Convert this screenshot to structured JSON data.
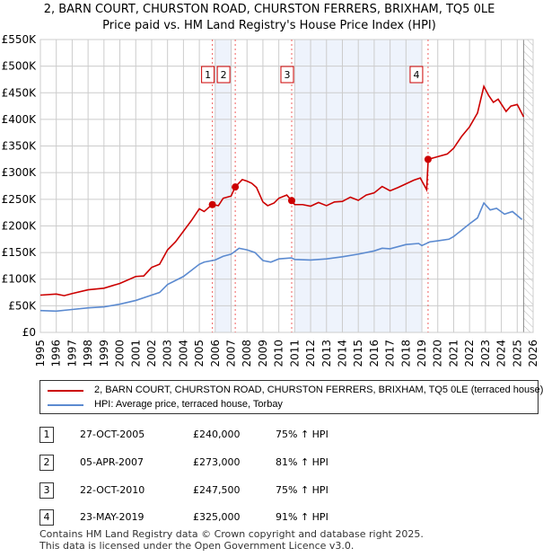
{
  "chart_data": {
    "type": "line",
    "title": "2, BARN COURT, CHURSTON ROAD, CHURSTON FERRERS, BRIXHAM, TQ5 0LE",
    "subtitle": "Price paid vs. HM Land Registry's House Price Index (HPI)",
    "ylim": [
      0,
      550000
    ],
    "xlim": [
      1995,
      2026
    ],
    "y_ticks": [
      {
        "v": 0,
        "l": "£0"
      },
      {
        "v": 50000,
        "l": "£50K"
      },
      {
        "v": 100000,
        "l": "£100K"
      },
      {
        "v": 150000,
        "l": "£150K"
      },
      {
        "v": 200000,
        "l": "£200K"
      },
      {
        "v": 250000,
        "l": "£250K"
      },
      {
        "v": 300000,
        "l": "£300K"
      },
      {
        "v": 350000,
        "l": "£350K"
      },
      {
        "v": 400000,
        "l": "£400K"
      },
      {
        "v": 450000,
        "l": "£450K"
      },
      {
        "v": 500000,
        "l": "£500K"
      },
      {
        "v": 550000,
        "l": "£550K"
      }
    ],
    "x_ticks": [
      "1995",
      "1996",
      "1997",
      "1998",
      "1999",
      "2000",
      "2001",
      "2002",
      "2003",
      "2004",
      "2005",
      "2006",
      "2007",
      "2008",
      "2009",
      "2010",
      "2011",
      "2012",
      "2013",
      "2014",
      "2015",
      "2016",
      "2017",
      "2018",
      "2019",
      "2020",
      "2021",
      "2022",
      "2023",
      "2024",
      "2025",
      "2026"
    ],
    "shaded_ranges": [
      [
        2006,
        2007
      ],
      [
        2011,
        2019
      ]
    ],
    "forecast_from": 2025.4,
    "series": [
      {
        "name": "2, BARN COURT, CHURSTON ROAD, CHURSTON FERRERS, BRIXHAM, TQ5 0LE (terraced house)",
        "color": "#cc0000",
        "points": [
          [
            1995,
            70
          ],
          [
            1996,
            72
          ],
          [
            1996.5,
            69
          ],
          [
            1997,
            73
          ],
          [
            1998,
            80
          ],
          [
            1999,
            83
          ],
          [
            2000,
            92
          ],
          [
            2001,
            105
          ],
          [
            2001.5,
            106
          ],
          [
            2002,
            122
          ],
          [
            2002.5,
            128
          ],
          [
            2003,
            155
          ],
          [
            2003.5,
            170
          ],
          [
            2004,
            190
          ],
          [
            2004.5,
            210
          ],
          [
            2005,
            232
          ],
          [
            2005.3,
            227
          ],
          [
            2005.8,
            240
          ],
          [
            2006.2,
            238
          ],
          [
            2006.5,
            252
          ],
          [
            2007,
            256
          ],
          [
            2007.25,
            273
          ],
          [
            2007.7,
            287
          ],
          [
            2008,
            284
          ],
          [
            2008.3,
            280
          ],
          [
            2008.6,
            272
          ],
          [
            2009,
            245
          ],
          [
            2009.3,
            238
          ],
          [
            2009.7,
            243
          ],
          [
            2010,
            252
          ],
          [
            2010.5,
            258
          ],
          [
            2010.8,
            247.5
          ],
          [
            2011,
            240
          ],
          [
            2011.5,
            240
          ],
          [
            2012,
            237
          ],
          [
            2012.5,
            244
          ],
          [
            2013,
            238
          ],
          [
            2013.5,
            245
          ],
          [
            2014,
            246
          ],
          [
            2014.5,
            254
          ],
          [
            2015,
            248
          ],
          [
            2015.5,
            258
          ],
          [
            2016,
            262
          ],
          [
            2016.5,
            274
          ],
          [
            2017,
            266
          ],
          [
            2017.5,
            272
          ],
          [
            2018,
            279
          ],
          [
            2018.5,
            286
          ],
          [
            2018.9,
            290
          ],
          [
            2019.3,
            268
          ],
          [
            2019.4,
            325
          ],
          [
            2020,
            330
          ],
          [
            2020.6,
            335
          ],
          [
            2021,
            346
          ],
          [
            2021.5,
            368
          ],
          [
            2022,
            386
          ],
          [
            2022.5,
            412
          ],
          [
            2022.9,
            462
          ],
          [
            2023.2,
            445
          ],
          [
            2023.5,
            432
          ],
          [
            2023.8,
            438
          ],
          [
            2024.3,
            415
          ],
          [
            2024.6,
            425
          ],
          [
            2025,
            428
          ],
          [
            2025.4,
            405
          ]
        ]
      },
      {
        "name": "HPI: Average price, terraced house, Torbay",
        "color": "#5b8ad0",
        "points": [
          [
            1995,
            41
          ],
          [
            1996,
            40
          ],
          [
            1997,
            43
          ],
          [
            1998,
            46
          ],
          [
            1999,
            48
          ],
          [
            2000,
            53
          ],
          [
            2001,
            60
          ],
          [
            2002,
            70
          ],
          [
            2002.5,
            75
          ],
          [
            2003,
            90
          ],
          [
            2004,
            105
          ],
          [
            2005,
            128
          ],
          [
            2005.3,
            132
          ],
          [
            2006,
            136
          ],
          [
            2006.5,
            143
          ],
          [
            2007,
            147
          ],
          [
            2007.5,
            158
          ],
          [
            2008,
            155
          ],
          [
            2008.5,
            150
          ],
          [
            2009,
            135
          ],
          [
            2009.5,
            132
          ],
          [
            2010,
            138
          ],
          [
            2010.8,
            140
          ],
          [
            2011,
            137
          ],
          [
            2012,
            136
          ],
          [
            2013,
            138
          ],
          [
            2014,
            142
          ],
          [
            2015,
            147
          ],
          [
            2016,
            153
          ],
          [
            2016.5,
            158
          ],
          [
            2017,
            157
          ],
          [
            2018,
            165
          ],
          [
            2018.8,
            167
          ],
          [
            2019,
            163
          ],
          [
            2019.5,
            170
          ],
          [
            2020,
            172
          ],
          [
            2020.7,
            175
          ],
          [
            2021,
            180
          ],
          [
            2021.5,
            192
          ],
          [
            2022,
            204
          ],
          [
            2022.5,
            215
          ],
          [
            2022.9,
            243
          ],
          [
            2023.3,
            230
          ],
          [
            2023.7,
            233
          ],
          [
            2024.2,
            222
          ],
          [
            2024.7,
            227
          ],
          [
            2025.3,
            212
          ]
        ]
      }
    ],
    "sales": [
      {
        "n": "1",
        "x": 2005.82,
        "price": 240000,
        "date": "27-OCT-2005",
        "price_label": "£240,000",
        "hpi": "75% ↑ HPI"
      },
      {
        "n": "2",
        "x": 2007.26,
        "price": 273000,
        "date": "05-APR-2007",
        "price_label": "£273,000",
        "hpi": "81% ↑ HPI"
      },
      {
        "n": "3",
        "x": 2010.81,
        "price": 247500,
        "date": "22-OCT-2010",
        "price_label": "£247,500",
        "hpi": "75% ↑ HPI"
      },
      {
        "n": "4",
        "x": 2019.39,
        "price": 325000,
        "date": "23-MAY-2019",
        "price_label": "£325,000",
        "hpi": "91% ↑ HPI"
      }
    ]
  },
  "footer": {
    "line1": "Contains HM Land Registry data © Crown copyright and database right 2025.",
    "line2": "This data is licensed under the Open Government Licence v3.0."
  }
}
